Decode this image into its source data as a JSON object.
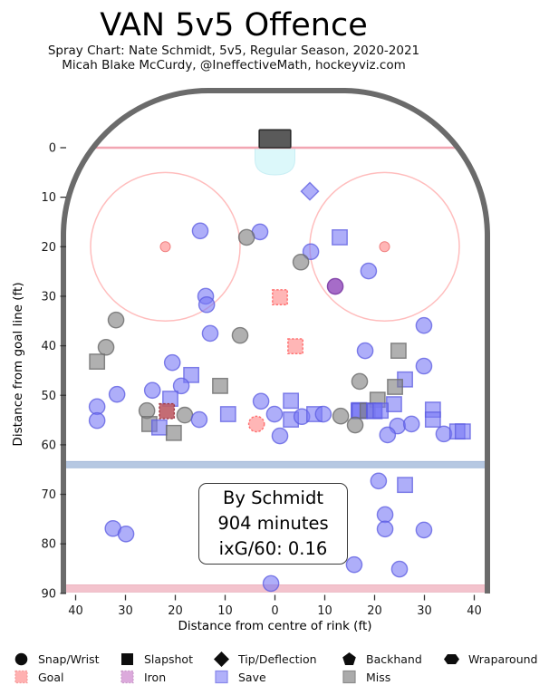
{
  "header": {
    "title": "VAN 5v5 Offence",
    "subtitle1": "Spray Chart: Nate Schmidt, 5v5, Regular Season, 2020-2021",
    "subtitle2": "Micah Blake McCurdy, @IneffectiveMath, hockeyviz.com"
  },
  "annotation": {
    "line1": "By Schmidt",
    "line2": "904 minutes",
    "line3": "ixG/60: 0.16"
  },
  "axes": {
    "xlabel": "Distance from centre of rink (ft)",
    "ylabel": "Distance from goal line (ft)",
    "x_tick_values": [
      -40,
      -30,
      -20,
      -10,
      0,
      10,
      20,
      30,
      40
    ],
    "x_tick_labels": [
      "40",
      "30",
      "20",
      "10",
      "0",
      "10",
      "20",
      "30",
      "40"
    ],
    "y_tick_values": [
      0,
      10,
      20,
      30,
      40,
      50,
      60,
      70,
      80,
      90
    ],
    "y_tick_labels": [
      "0",
      "10",
      "20",
      "30",
      "40",
      "50",
      "60",
      "70",
      "80",
      "90"
    ]
  },
  "legend": {
    "shapes": [
      {
        "label": "Snap/Wrist",
        "shape": "circle"
      },
      {
        "label": "Slapshot",
        "shape": "square"
      },
      {
        "label": "Tip/Deflection",
        "shape": "diamond"
      },
      {
        "label": "Backhand",
        "shape": "pentagon"
      },
      {
        "label": "Wraparound",
        "shape": "hexagon"
      }
    ],
    "results": [
      {
        "label": "Goal",
        "fill": "#ffb1b1",
        "stroke": "#f49a9a",
        "dashed": true
      },
      {
        "label": "Iron",
        "fill": "#dcaadc",
        "stroke": "#c99ac9",
        "dashed": true
      },
      {
        "label": "Save",
        "fill": "#b1b1fa",
        "stroke": "#8888eb",
        "dashed": false
      },
      {
        "label": "Miss",
        "fill": "#ababab",
        "stroke": "#8c8c8c",
        "dashed": false
      }
    ]
  },
  "colors": {
    "boards": "#6b6b6b",
    "goal_line": "#f2a6b2",
    "blue_line": "#b6c8e2",
    "blue_line_edge": "#9db4d6",
    "center_line": "#f3c3cd",
    "center_line_edge": "#eab2bf",
    "crease": "#dcf8fa",
    "crease_edge": "#c9eef4",
    "net_fill": "#5a5a5a",
    "net_stroke": "#2a2a2a",
    "faceoff_circle": "#ffbdbd",
    "faceoff_dot_fill": "#ff9e9e",
    "faceoff_dot_stroke": "#f08080",
    "save_fill": "#7878f5",
    "save_stroke": "#5a5ae0",
    "miss_fill": "#808080",
    "miss_stroke": "#6a6a6a",
    "goal_fill": "#ff5050",
    "goal_stroke": "#ff5c5c",
    "goal_dark_fill": "#bf5f68",
    "goal_dark_stroke": "#9e3540",
    "iron_fill": "#9a58c0",
    "iron_stroke": "#7b3ba3",
    "tick_text": "#1a1a1a"
  },
  "chart_data": {
    "type": "scatter",
    "title": "VAN 5v5 Offence",
    "xlabel": "Distance from centre of rink (ft)",
    "ylabel": "Distance from goal line (ft)",
    "xlim": [
      -42.5,
      42.5
    ],
    "ylim": [
      -11.5,
      90
    ],
    "rink": {
      "goal_line_y": 0,
      "blue_line_y": 64,
      "center_line_y": 89,
      "faceoff_circles": [
        {
          "x": -22,
          "y": 20,
          "r": 15
        },
        {
          "x": 22,
          "y": 20,
          "r": 15
        }
      ],
      "net": {
        "x": 0,
        "width": 6.3,
        "depth": 3.6
      },
      "crease": {
        "width": 8,
        "depth": 5.5
      }
    },
    "marker_legend": {
      "shapes": {
        "circle": "Snap/Wrist",
        "square": "Slapshot",
        "diamond": "Tip/Deflection",
        "pentagon": "Backhand",
        "hexagon": "Wraparound"
      },
      "results": {
        "goal": "Goal",
        "iron": "Iron",
        "save": "Save",
        "miss": "Miss"
      }
    },
    "markers": [
      [
        7.0,
        8.8,
        "diamond",
        "save"
      ],
      [
        -15.0,
        16.8,
        "circle",
        "save"
      ],
      [
        -3.0,
        17.0,
        "circle",
        "save"
      ],
      [
        -5.7,
        18.1,
        "circle",
        "miss"
      ],
      [
        13.0,
        18.1,
        "square",
        "save"
      ],
      [
        7.2,
        21.0,
        "circle",
        "save"
      ],
      [
        5.2,
        23.1,
        "circle",
        "miss"
      ],
      [
        18.8,
        24.9,
        "circle",
        "save"
      ],
      [
        12.1,
        28.0,
        "circle",
        "iron"
      ],
      [
        1.0,
        30.2,
        "square",
        "goal"
      ],
      [
        -13.9,
        30.0,
        "circle",
        "save"
      ],
      [
        -13.7,
        31.7,
        "circle",
        "save"
      ],
      [
        -31.9,
        34.8,
        "circle",
        "miss"
      ],
      [
        -13.0,
        37.5,
        "circle",
        "save"
      ],
      [
        -7.0,
        37.9,
        "circle",
        "miss"
      ],
      [
        29.9,
        35.9,
        "circle",
        "save"
      ],
      [
        4.1,
        40.1,
        "square",
        "goal"
      ],
      [
        18.1,
        41.0,
        "circle",
        "save"
      ],
      [
        24.8,
        41.0,
        "square",
        "miss"
      ],
      [
        -33.9,
        40.3,
        "circle",
        "miss"
      ],
      [
        -35.7,
        43.2,
        "square",
        "miss"
      ],
      [
        -20.6,
        43.4,
        "circle",
        "save"
      ],
      [
        29.9,
        44.1,
        "circle",
        "save"
      ],
      [
        -16.8,
        45.9,
        "square",
        "save"
      ],
      [
        -18.8,
        48.1,
        "circle",
        "save"
      ],
      [
        17.0,
        47.2,
        "circle",
        "miss"
      ],
      [
        26.1,
        46.8,
        "square",
        "save"
      ],
      [
        24.1,
        48.3,
        "square",
        "miss"
      ],
      [
        -24.6,
        49.0,
        "circle",
        "save"
      ],
      [
        -11.0,
        48.1,
        "square",
        "miss"
      ],
      [
        20.6,
        50.9,
        "square",
        "miss"
      ],
      [
        -31.7,
        49.8,
        "circle",
        "save"
      ],
      [
        -35.7,
        52.3,
        "circle",
        "save"
      ],
      [
        -35.7,
        55.1,
        "circle",
        "save"
      ],
      [
        -21.0,
        50.7,
        "square",
        "save"
      ],
      [
        -2.8,
        51.2,
        "circle",
        "save"
      ],
      [
        3.2,
        51.1,
        "square",
        "save"
      ],
      [
        23.9,
        51.8,
        "square",
        "save"
      ],
      [
        31.7,
        52.9,
        "square",
        "save"
      ],
      [
        -25.7,
        53.1,
        "circle",
        "miss"
      ],
      [
        -21.7,
        53.2,
        "square",
        "goal_dark"
      ],
      [
        -18.1,
        54.0,
        "circle",
        "miss"
      ],
      [
        -15.2,
        54.9,
        "circle",
        "save"
      ],
      [
        -9.4,
        53.8,
        "square",
        "save"
      ],
      [
        -0.1,
        53.8,
        "circle",
        "save"
      ],
      [
        3.2,
        54.9,
        "square",
        "save"
      ],
      [
        5.4,
        54.3,
        "circle",
        "save"
      ],
      [
        7.9,
        53.8,
        "square",
        "save"
      ],
      [
        9.7,
        53.8,
        "circle",
        "save"
      ],
      [
        13.2,
        54.2,
        "circle",
        "miss"
      ],
      [
        16.8,
        53.1,
        "square",
        "save"
      ],
      [
        16.9,
        53.0,
        "square",
        "save"
      ],
      [
        17.0,
        53.2,
        "square",
        "save"
      ],
      [
        18.6,
        53.1,
        "square",
        "miss"
      ],
      [
        19.9,
        53.1,
        "square",
        "save"
      ],
      [
        20.0,
        53.2,
        "square",
        "save"
      ],
      [
        21.2,
        53.1,
        "square",
        "save"
      ],
      [
        -3.7,
        55.8,
        "circle",
        "goal"
      ],
      [
        16.1,
        56.0,
        "circle",
        "miss"
      ],
      [
        24.6,
        56.2,
        "circle",
        "save"
      ],
      [
        27.4,
        55.8,
        "circle",
        "save"
      ],
      [
        31.7,
        54.9,
        "square",
        "save"
      ],
      [
        -25.2,
        55.8,
        "square",
        "miss"
      ],
      [
        -23.2,
        56.5,
        "square",
        "save"
      ],
      [
        -20.3,
        57.6,
        "square",
        "miss"
      ],
      [
        1.0,
        58.2,
        "circle",
        "save"
      ],
      [
        22.6,
        58.0,
        "circle",
        "save"
      ],
      [
        33.9,
        57.8,
        "circle",
        "save"
      ],
      [
        36.6,
        57.3,
        "square",
        "save"
      ],
      [
        37.7,
        57.3,
        "square",
        "save"
      ],
      [
        20.8,
        67.3,
        "circle",
        "save"
      ],
      [
        26.1,
        68.1,
        "square",
        "save"
      ],
      [
        -32.5,
        76.9,
        "circle",
        "save"
      ],
      [
        -29.9,
        78.0,
        "circle",
        "save"
      ],
      [
        22.1,
        74.1,
        "circle",
        "save"
      ],
      [
        22.1,
        77.0,
        "circle",
        "save"
      ],
      [
        29.9,
        77.2,
        "circle",
        "save"
      ],
      [
        15.9,
        84.2,
        "circle",
        "save"
      ],
      [
        25.0,
        85.1,
        "circle",
        "save"
      ],
      [
        -0.8,
        88.0,
        "circle",
        "save"
      ]
    ]
  }
}
